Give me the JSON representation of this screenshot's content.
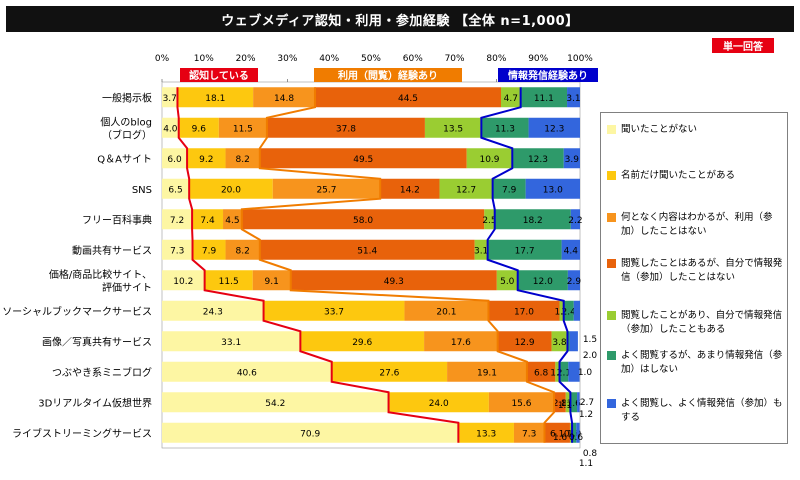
{
  "title": "ウェブメディア認知・利用・参加経験 【全体 n=1,000】",
  "tag": "単一回答",
  "chart_data": {
    "type": "bar",
    "orientation": "horizontal-stacked-100",
    "xlim": [
      0,
      100
    ],
    "ticks": [
      "0%",
      "10%",
      "20%",
      "30%",
      "40%",
      "50%",
      "60%",
      "70%",
      "80%",
      "90%",
      "100%"
    ],
    "categories": [
      [
        "一般掲示板"
      ],
      [
        "個人のblog",
        "（ブログ）"
      ],
      [
        "Q＆Aサイト"
      ],
      [
        "SNS"
      ],
      [
        "フリー百科事典"
      ],
      [
        "動画共有サービス"
      ],
      [
        "価格/商品比較サイト、",
        "評価サイト"
      ],
      [
        "ソーシャルブックマークサービス"
      ],
      [
        "画像／写真共有サービス"
      ],
      [
        "つぶやき系ミニブログ"
      ],
      [
        "3Dリアルタイム仮想世界"
      ],
      [
        "ライブストリーミングサービス"
      ]
    ],
    "series": [
      {
        "name": "聞いたことがない",
        "color": "#fdf6a3",
        "values": [
          3.7,
          4.0,
          6.0,
          6.5,
          7.2,
          7.3,
          10.2,
          24.3,
          33.1,
          40.6,
          54.2,
          70.9
        ],
        "labels": [
          "3.7",
          "4.0",
          "6.0",
          "6.5",
          "7.2",
          "7.3",
          "10.2",
          "24.3",
          "33.1",
          "40.6",
          "54.2",
          "70.9"
        ]
      },
      {
        "name": "名前だけ聞いたことがある",
        "color": "#fdc80f",
        "values": [
          18.1,
          9.6,
          9.2,
          20.0,
          7.4,
          7.9,
          11.5,
          33.7,
          29.6,
          27.6,
          24.0,
          13.3
        ],
        "labels": [
          "18.1",
          "9.6",
          "9.2",
          "20.0",
          "7.4",
          "7.9",
          "11.5",
          "33.7",
          "29.6",
          "27.6",
          "24.0",
          "13.3"
        ]
      },
      {
        "name": "何となく内容はわかるが、利用（参加）したことはない",
        "color": "#f7941d",
        "values": [
          14.8,
          11.5,
          8.2,
          25.7,
          4.5,
          8.2,
          9.1,
          20.1,
          17.6,
          19.1,
          15.6,
          7.3
        ],
        "labels": [
          "14.8",
          "11.5",
          "8.2",
          "25.7",
          "4.5",
          "8.2",
          "9.1",
          "20.1",
          "17.6",
          "19.1",
          "15.6",
          "7.3"
        ]
      },
      {
        "name": "閲覧したことはあるが、自分で情報発信（参加）したことはない",
        "color": "#e8620b",
        "values": [
          44.5,
          37.8,
          49.5,
          14.2,
          58.0,
          51.4,
          49.3,
          17.0,
          12.9,
          6.8,
          2.8,
          6.1
        ],
        "labels": [
          "44.5",
          "37.8",
          "49.5",
          "14.2",
          "58.0",
          "51.4",
          "49.3",
          "17.0",
          "12.9",
          "6.8",
          "2.8",
          "6.1"
        ]
      },
      {
        "name": "閲覧したことがあり、自分で情報発信（参加）したこともある",
        "color": "#9acd32",
        "values": [
          4.7,
          13.5,
          10.9,
          12.7,
          2.5,
          3.1,
          5.0,
          1.0,
          3.8,
          1.0,
          1.1,
          0.5
        ],
        "labels": [
          "4.7",
          "13.5",
          "10.9",
          "12.7",
          "2.5",
          "3.1",
          "5.0",
          "1.0",
          "3.8",
          "1.0",
          "1.1",
          "0.5"
        ]
      },
      {
        "name": "よく閲覧するが、あまり情報発信（参加）はしない",
        "color": "#2e9a6a",
        "values": [
          11.1,
          11.3,
          12.3,
          7.9,
          18.2,
          17.7,
          12.0,
          2.4,
          0.5,
          2.1,
          1.6,
          1.0
        ],
        "labels": [
          "11.1",
          "11.3",
          "12.3",
          "7.9",
          "18.2",
          "17.7",
          "12.0",
          "2.4",
          "",
          "2.1",
          "1.6",
          "1.0"
        ]
      },
      {
        "name": "よく閲覧し、よく情報発信（参加）もする",
        "color": "#3366dd",
        "values": [
          3.1,
          12.3,
          3.9,
          13.0,
          2.2,
          4.4,
          2.9,
          1.5,
          2.0,
          2.7,
          0.6,
          0.8
        ],
        "labels": [
          "3.1",
          "12.3",
          "3.9",
          "13.0",
          "2.2",
          "4.4",
          "2.9",
          "",
          "",
          "",
          "",
          ""
        ]
      }
    ],
    "outside_labels": [
      "1.5",
      "2.0",
      "1.0",
      "2.7",
      "1.1",
      "1.2",
      "1.6",
      "0.6",
      "0.8",
      "1.1"
    ],
    "groups": [
      {
        "label": "認知している",
        "color": "#e60012"
      },
      {
        "label": "利用（閲覧）経験あり",
        "color": "#f07c00"
      },
      {
        "label": "情報発信経験あり",
        "color": "#0000cc"
      }
    ]
  }
}
